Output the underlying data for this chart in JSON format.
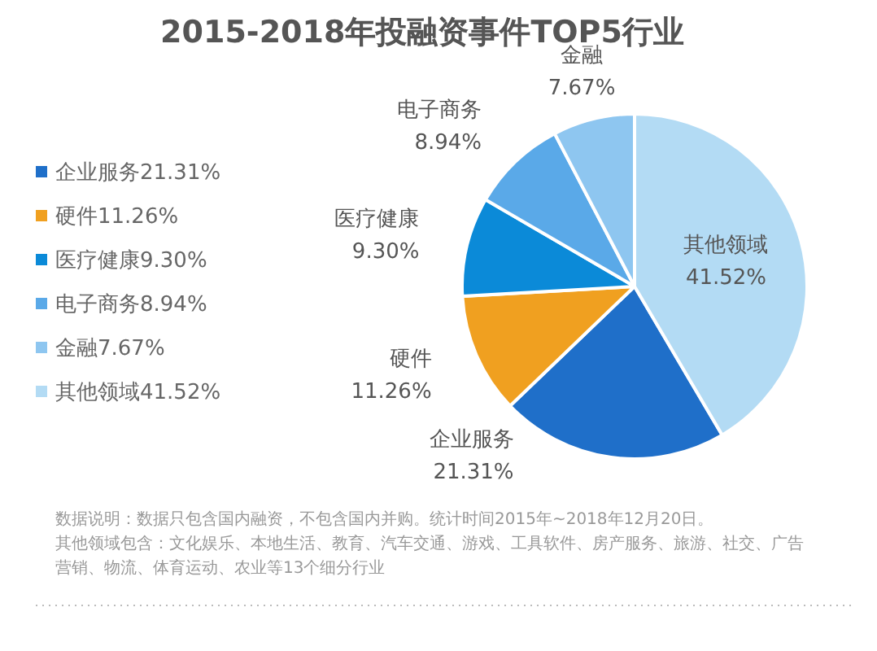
{
  "chart_data": {
    "type": "pie",
    "title": "2015-2018年投融资事件TOP5行业",
    "categories": [
      "企业服务",
      "硬件",
      "医疗健康",
      "电子商务",
      "金融",
      "其他领域"
    ],
    "values": [
      21.31,
      11.26,
      9.3,
      8.94,
      7.67,
      41.52
    ],
    "value_labels": [
      "21.31%",
      "11.26%",
      "9.30%",
      "8.94%",
      "7.67%",
      "41.52%"
    ],
    "colors": [
      "#1f6fc9",
      "#f0a020",
      "#0b8ad8",
      "#5aa9e8",
      "#8ec6f0",
      "#b3dbf4"
    ],
    "legend": "left",
    "annotations": [
      "数据说明：数据只包含国内融资，不包含国内并购。统计时间2015年~2018年12月20日。",
      "其他领域包含：文化娱乐、本地生活、教育、汽车交通、游戏、工具软件、房产服务、旅游、社交、广告营销、物流、体育运动、农业等13个细分行业"
    ]
  }
}
